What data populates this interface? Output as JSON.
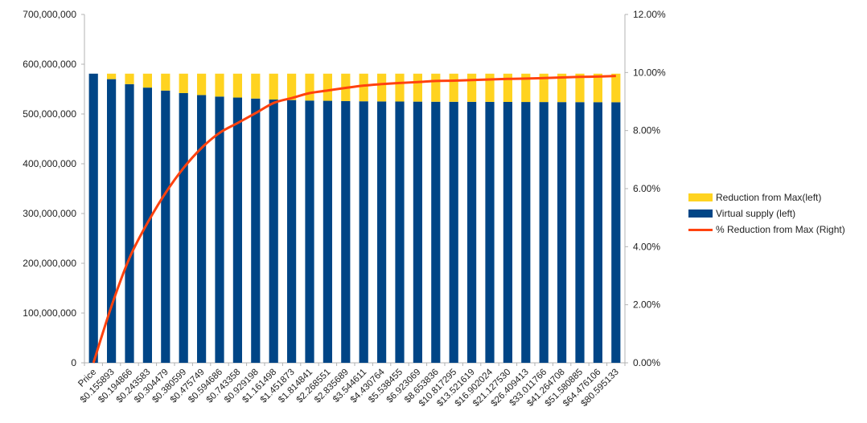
{
  "chart_data": {
    "type": "bar",
    "stacked": true,
    "categories": [
      "Price",
      "$0.155893",
      "$0.194866",
      "$0.243583",
      "$0.304479",
      "$0.380599",
      "$0.475749",
      "$0.594686",
      "$0.743358",
      "$0.929198",
      "$1.161498",
      "$1.451873",
      "$1.814841",
      "$2.268551",
      "$2.835689",
      "$3.544611",
      "$4.430764",
      "$5.538455",
      "$6.923069",
      "$8.653836",
      "$10.817295",
      "$13.521619",
      "$16.902024",
      "$21.127530",
      "$26.409413",
      "$33.011766",
      "$41.264708",
      "$51.580885",
      "$64.476106",
      "$80.595133"
    ],
    "series": [
      {
        "name": "Virtual supply (left)",
        "axis": "left",
        "kind": "bar",
        "color": "#004586",
        "values": [
          581000000,
          570000000,
          560000000,
          553000000,
          547000000,
          542000000,
          538000000,
          535000000,
          533000000,
          531000000,
          529000000,
          528000000,
          527000000,
          526500000,
          526000000,
          525500000,
          525200000,
          525000000,
          524800000,
          524600000,
          524500000,
          524400000,
          524300000,
          524200000,
          524100000,
          524000000,
          523900000,
          523800000,
          523700000,
          523600000
        ]
      },
      {
        "name": "Reduction from Max(left)",
        "axis": "left",
        "kind": "bar",
        "color": "#ffd320",
        "values": [
          0,
          11000000,
          21000000,
          28000000,
          34000000,
          39000000,
          43000000,
          46000000,
          48000000,
          50000000,
          52000000,
          53000000,
          54000000,
          54500000,
          55000000,
          55500000,
          55800000,
          56000000,
          56200000,
          56400000,
          56500000,
          56600000,
          56700000,
          56800000,
          56900000,
          57000000,
          57100000,
          57200000,
          57300000,
          57400000
        ]
      },
      {
        "name": "% Reduction from Max (Right)",
        "axis": "right",
        "kind": "line",
        "color": "#ff420e",
        "values": [
          0,
          0.0195,
          0.0361,
          0.0482,
          0.0585,
          0.0671,
          0.074,
          0.0792,
          0.0826,
          0.086,
          0.0895,
          0.0912,
          0.0929,
          0.0938,
          0.0947,
          0.0955,
          0.096,
          0.0964,
          0.0967,
          0.0971,
          0.0972,
          0.0974,
          0.0976,
          0.0978,
          0.0979,
          0.0981,
          0.0983,
          0.0985,
          0.0986,
          0.0988
        ]
      }
    ],
    "left_axis": {
      "ylim": [
        0,
        700000000
      ],
      "ticks": [
        "0",
        "100,000,000",
        "200,000,000",
        "300,000,000",
        "400,000,000",
        "500,000,000",
        "600,000,000",
        "700,000,000"
      ]
    },
    "right_axis": {
      "ylim": [
        0,
        0.12
      ],
      "ticks": [
        "0.00%",
        "2.00%",
        "4.00%",
        "6.00%",
        "8.00%",
        "10.00%",
        "12.00%"
      ]
    },
    "grid": false,
    "legend_position": "right"
  }
}
